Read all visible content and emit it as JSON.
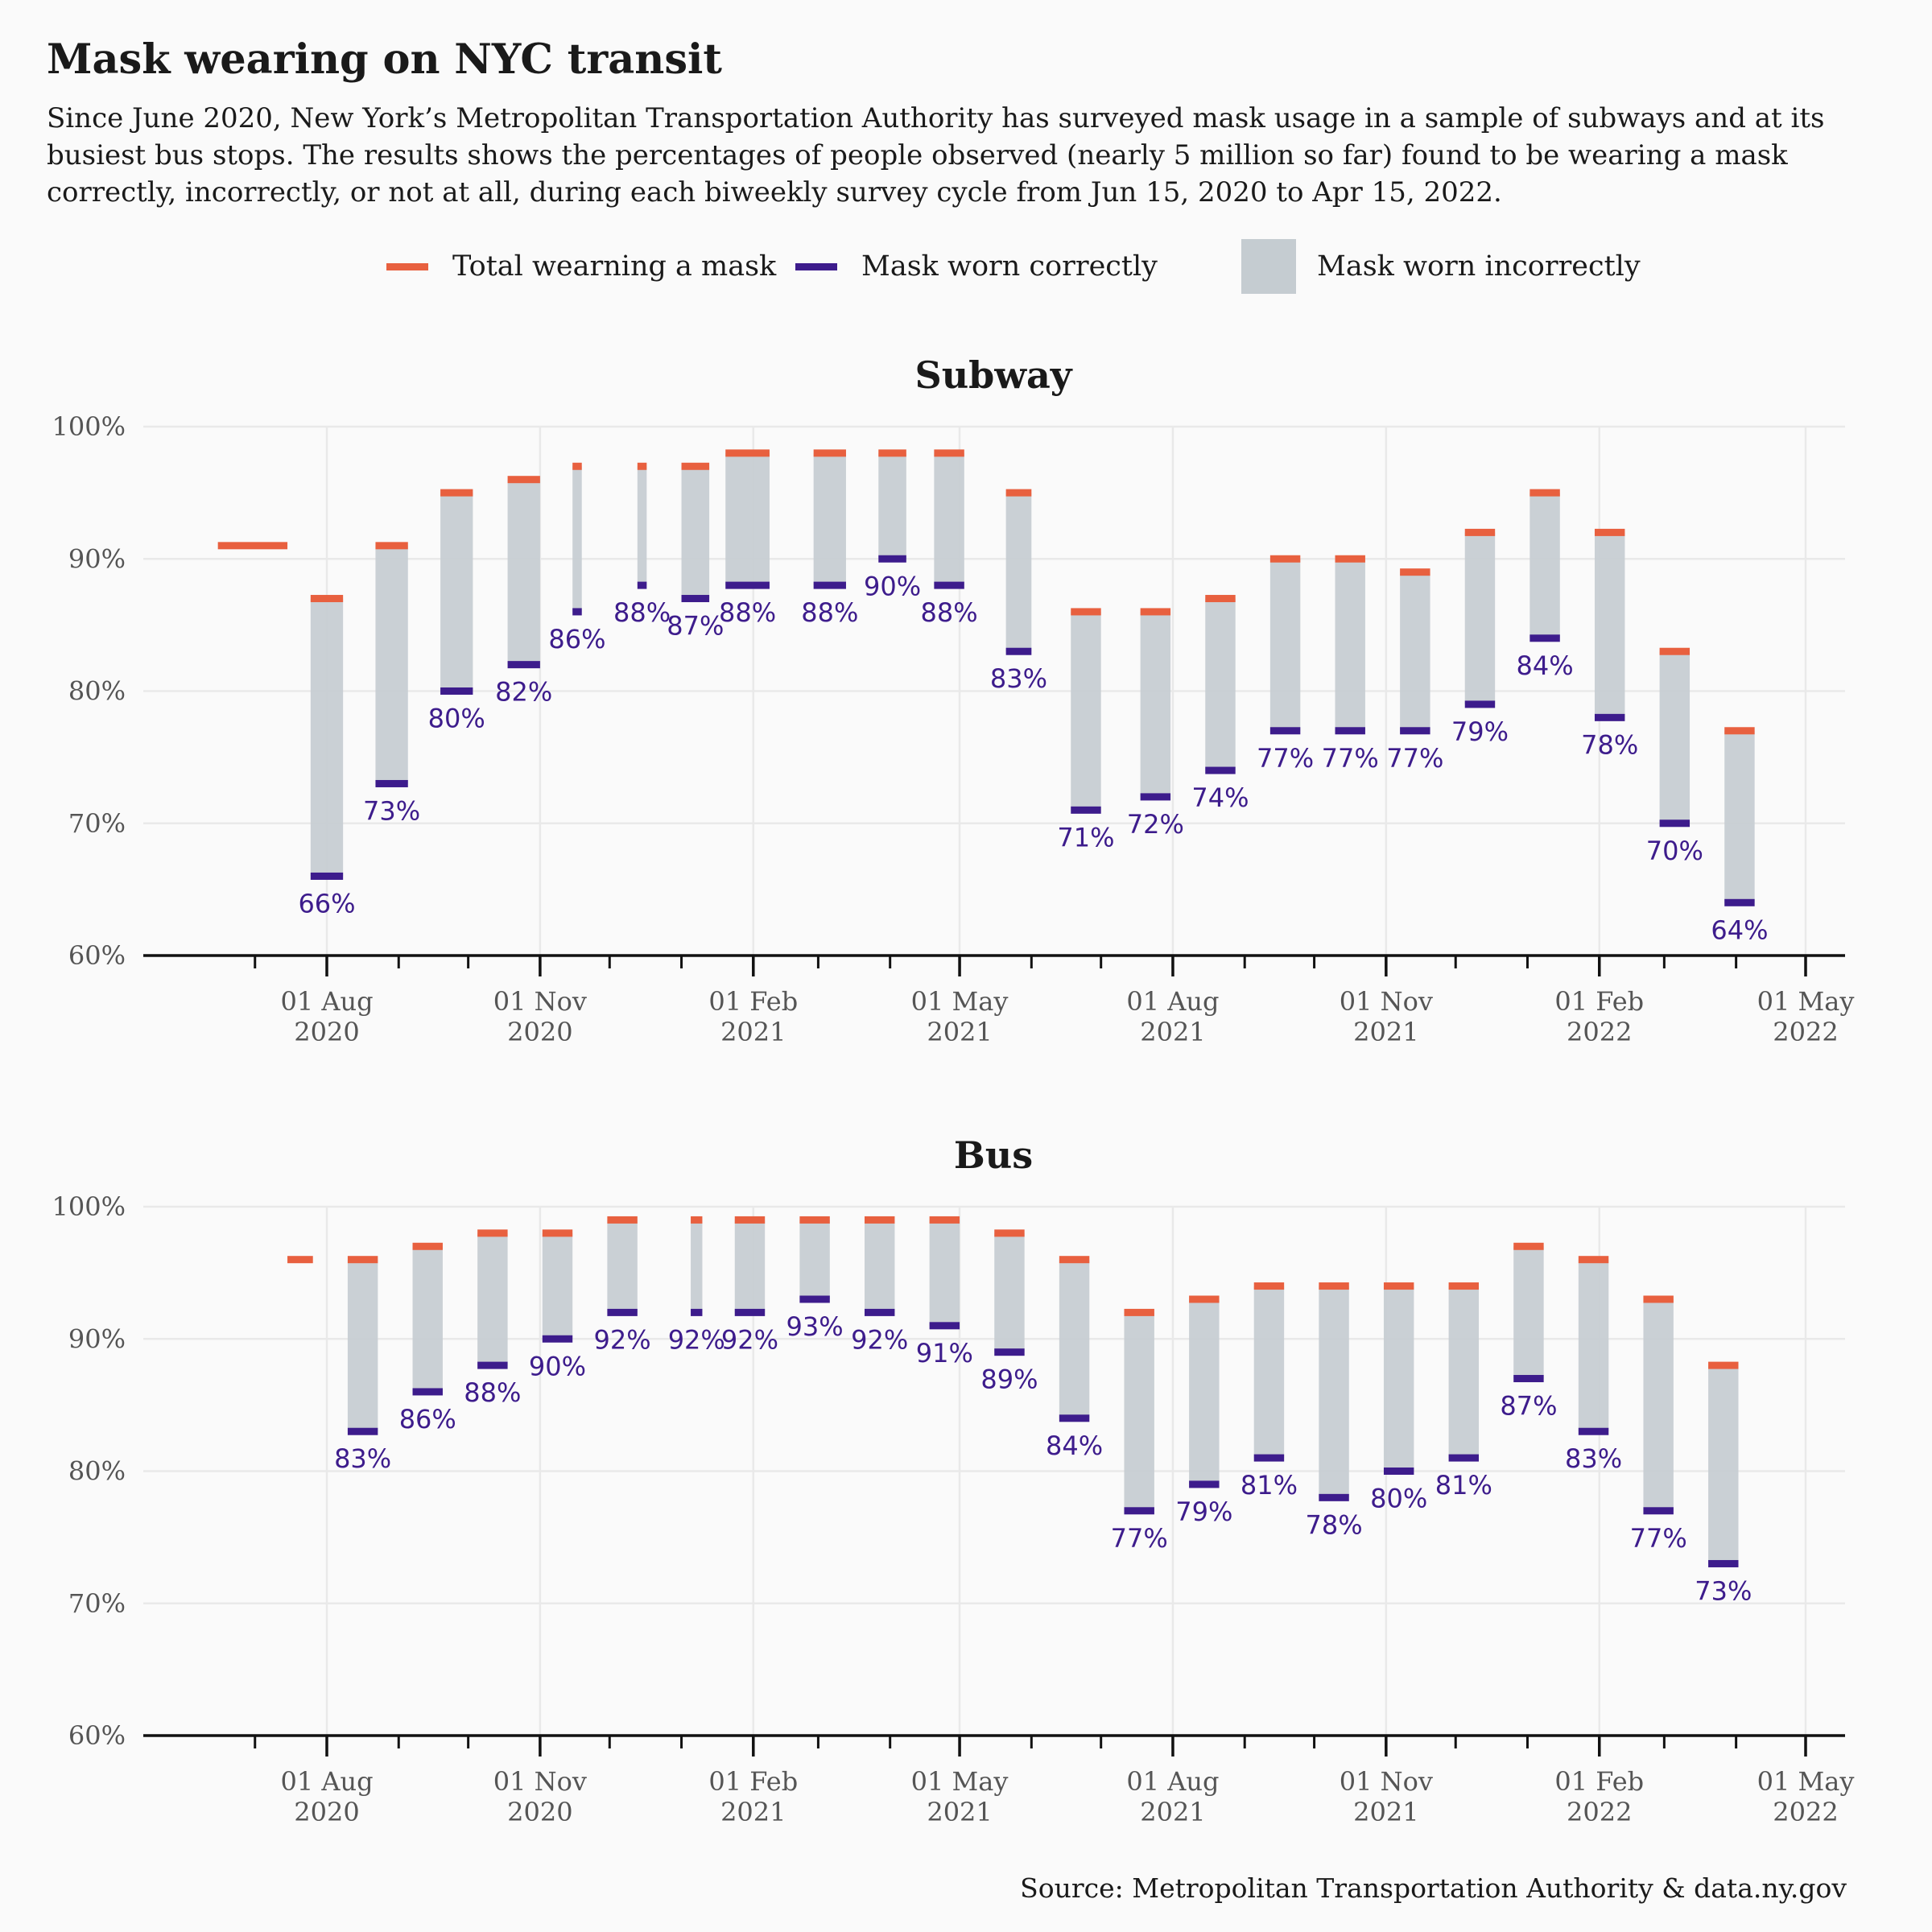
{
  "title": "Mask wearing on NYC transit",
  "subtitle": "Since June 2020, New York’s Metropolitan Transportation Authority has surveyed mask usage in a sample of subways and at its busiest bus stops. The results shows the percentages of people observed (nearly 5 million so far) found to be wearing a mask correctly, incorrectly, or not at all, during each biweekly survey cycle from Jun 15, 2020 to Apr 15, 2022.",
  "legend": {
    "total": "Total wearning a mask",
    "correct": "Mask worn correctly",
    "incorrect": "Mask worn incorrectly"
  },
  "colors": {
    "total": "#e8603f",
    "correct": "#3d1c8c",
    "incorrect": "#c5ccd1",
    "grid": "#e9e9e9",
    "axis": "#111111",
    "label": "#3d1c8c",
    "tick_text": "#555555"
  },
  "source": "Source: Metropolitan Transportation Authority & data.ny.gov",
  "chart_data": [
    {
      "type": "bar",
      "title": "Subway",
      "ylim": [
        60,
        100
      ],
      "y_ticks": [
        "60%",
        "70%",
        "80%",
        "90%",
        "100%"
      ],
      "x_ticks": [
        {
          "date": "2020-08-01",
          "line1": "01 Aug",
          "line2": "2020"
        },
        {
          "date": "2020-11-01",
          "line1": "01 Nov",
          "line2": "2020"
        },
        {
          "date": "2021-02-01",
          "line1": "01 Feb",
          "line2": "2021"
        },
        {
          "date": "2021-05-01",
          "line1": "01 May",
          "line2": "2021"
        },
        {
          "date": "2021-08-01",
          "line1": "01 Aug",
          "line2": "2021"
        },
        {
          "date": "2021-11-01",
          "line1": "01 Nov",
          "line2": "2021"
        },
        {
          "date": "2022-02-01",
          "line1": "01 Feb",
          "line2": "2022"
        },
        {
          "date": "2022-05-01",
          "line1": "01 May",
          "line2": "2022"
        }
      ],
      "series": [
        {
          "start": "2020-06-15",
          "end": "2020-07-15",
          "total": 91,
          "correct": null,
          "label": ""
        },
        {
          "start": "2020-07-25",
          "end": "2020-08-08",
          "total": 87,
          "correct": 66,
          "label": "66%"
        },
        {
          "start": "2020-08-22",
          "end": "2020-09-05",
          "total": 91,
          "correct": 73,
          "label": "73%"
        },
        {
          "start": "2020-09-19",
          "end": "2020-10-03",
          "total": 95,
          "correct": 80,
          "label": "80%"
        },
        {
          "start": "2020-10-18",
          "end": "2020-11-01",
          "total": 96,
          "correct": 82,
          "label": "82%"
        },
        {
          "start": "2020-11-15",
          "end": "2020-11-19",
          "total": 97,
          "correct": 86,
          "label": "86%"
        },
        {
          "start": "2020-12-13",
          "end": "2020-12-17",
          "total": 97,
          "correct": 88,
          "label": "88%"
        },
        {
          "start": "2021-01-01",
          "end": "2021-01-13",
          "total": 97,
          "correct": 87,
          "label": "87%"
        },
        {
          "start": "2021-01-20",
          "end": "2021-02-08",
          "total": 98,
          "correct": 88,
          "label": "88%"
        },
        {
          "start": "2021-02-27",
          "end": "2021-03-13",
          "total": 98,
          "correct": 88,
          "label": "88%"
        },
        {
          "start": "2021-03-27",
          "end": "2021-04-08",
          "total": 98,
          "correct": 90,
          "label": "90%"
        },
        {
          "start": "2021-04-20",
          "end": "2021-05-03",
          "total": 98,
          "correct": 88,
          "label": "88%"
        },
        {
          "start": "2021-05-21",
          "end": "2021-06-01",
          "total": 95,
          "correct": 83,
          "label": "83%"
        },
        {
          "start": "2021-06-18",
          "end": "2021-07-01",
          "total": 86,
          "correct": 71,
          "label": "71%"
        },
        {
          "start": "2021-07-18",
          "end": "2021-07-31",
          "total": 86,
          "correct": 72,
          "label": "72%"
        },
        {
          "start": "2021-08-15",
          "end": "2021-08-28",
          "total": 87,
          "correct": 74,
          "label": "74%"
        },
        {
          "start": "2021-09-12",
          "end": "2021-09-25",
          "total": 90,
          "correct": 77,
          "label": "77%"
        },
        {
          "start": "2021-10-10",
          "end": "2021-10-23",
          "total": 90,
          "correct": 77,
          "label": "77%"
        },
        {
          "start": "2021-11-07",
          "end": "2021-11-20",
          "total": 89,
          "correct": 77,
          "label": "77%"
        },
        {
          "start": "2021-12-05",
          "end": "2021-12-18",
          "total": 92,
          "correct": 79,
          "label": "79%"
        },
        {
          "start": "2022-01-02",
          "end": "2022-01-15",
          "total": 95,
          "correct": 84,
          "label": "84%"
        },
        {
          "start": "2022-01-30",
          "end": "2022-02-12",
          "total": 92,
          "correct": 78,
          "label": "78%"
        },
        {
          "start": "2022-02-27",
          "end": "2022-03-12",
          "total": 83,
          "correct": 70,
          "label": "70%"
        },
        {
          "start": "2022-03-27",
          "end": "2022-04-09",
          "total": 77,
          "correct": 64,
          "label": "64%"
        }
      ]
    },
    {
      "type": "bar",
      "title": "Bus",
      "ylim": [
        60,
        100
      ],
      "y_ticks": [
        "60%",
        "70%",
        "80%",
        "90%",
        "100%"
      ],
      "x_ticks": [
        {
          "date": "2020-08-01",
          "line1": "01 Aug",
          "line2": "2020"
        },
        {
          "date": "2020-11-01",
          "line1": "01 Nov",
          "line2": "2020"
        },
        {
          "date": "2021-02-01",
          "line1": "01 Feb",
          "line2": "2021"
        },
        {
          "date": "2021-05-01",
          "line1": "01 May",
          "line2": "2021"
        },
        {
          "date": "2021-08-01",
          "line1": "01 Aug",
          "line2": "2021"
        },
        {
          "date": "2021-11-01",
          "line1": "01 Nov",
          "line2": "2021"
        },
        {
          "date": "2022-02-01",
          "line1": "01 Feb",
          "line2": "2022"
        },
        {
          "date": "2022-05-01",
          "line1": "01 May",
          "line2": "2022"
        }
      ],
      "series": [
        {
          "start": "2020-07-15",
          "end": "2020-07-26",
          "total": 96,
          "correct": null,
          "label": ""
        },
        {
          "start": "2020-08-10",
          "end": "2020-08-23",
          "total": 96,
          "correct": 83,
          "label": "83%"
        },
        {
          "start": "2020-09-07",
          "end": "2020-09-20",
          "total": 97,
          "correct": 86,
          "label": "86%"
        },
        {
          "start": "2020-10-05",
          "end": "2020-10-18",
          "total": 98,
          "correct": 88,
          "label": "88%"
        },
        {
          "start": "2020-11-02",
          "end": "2020-11-15",
          "total": 98,
          "correct": 90,
          "label": "90%"
        },
        {
          "start": "2020-11-30",
          "end": "2020-12-13",
          "total": 99,
          "correct": 92,
          "label": "92%"
        },
        {
          "start": "2021-01-05",
          "end": "2021-01-10",
          "total": 99,
          "correct": 92,
          "label": "92%"
        },
        {
          "start": "2021-01-24",
          "end": "2021-02-06",
          "total": 99,
          "correct": 92,
          "label": "92%"
        },
        {
          "start": "2021-02-21",
          "end": "2021-03-06",
          "total": 99,
          "correct": 93,
          "label": "93%"
        },
        {
          "start": "2021-03-21",
          "end": "2021-04-03",
          "total": 99,
          "correct": 92,
          "label": "92%"
        },
        {
          "start": "2021-04-18",
          "end": "2021-05-01",
          "total": 99,
          "correct": 91,
          "label": "91%"
        },
        {
          "start": "2021-05-16",
          "end": "2021-05-29",
          "total": 98,
          "correct": 89,
          "label": "89%"
        },
        {
          "start": "2021-06-13",
          "end": "2021-06-26",
          "total": 96,
          "correct": 84,
          "label": "84%"
        },
        {
          "start": "2021-07-11",
          "end": "2021-07-24",
          "total": 92,
          "correct": 77,
          "label": "77%"
        },
        {
          "start": "2021-08-08",
          "end": "2021-08-21",
          "total": 93,
          "correct": 79,
          "label": "79%"
        },
        {
          "start": "2021-09-05",
          "end": "2021-09-18",
          "total": 94,
          "correct": 81,
          "label": "81%"
        },
        {
          "start": "2021-10-03",
          "end": "2021-10-16",
          "total": 94,
          "correct": 78,
          "label": "78%"
        },
        {
          "start": "2021-10-31",
          "end": "2021-11-13",
          "total": 94,
          "correct": 80,
          "label": "80%"
        },
        {
          "start": "2021-11-28",
          "end": "2021-12-11",
          "total": 94,
          "correct": 81,
          "label": "81%"
        },
        {
          "start": "2021-12-26",
          "end": "2022-01-08",
          "total": 97,
          "correct": 87,
          "label": "87%"
        },
        {
          "start": "2022-01-23",
          "end": "2022-02-05",
          "total": 96,
          "correct": 83,
          "label": "83%"
        },
        {
          "start": "2022-02-20",
          "end": "2022-03-05",
          "total": 93,
          "correct": 77,
          "label": "77%"
        },
        {
          "start": "2022-03-20",
          "end": "2022-04-02",
          "total": 88,
          "correct": 73,
          "label": "73%"
        }
      ]
    }
  ]
}
